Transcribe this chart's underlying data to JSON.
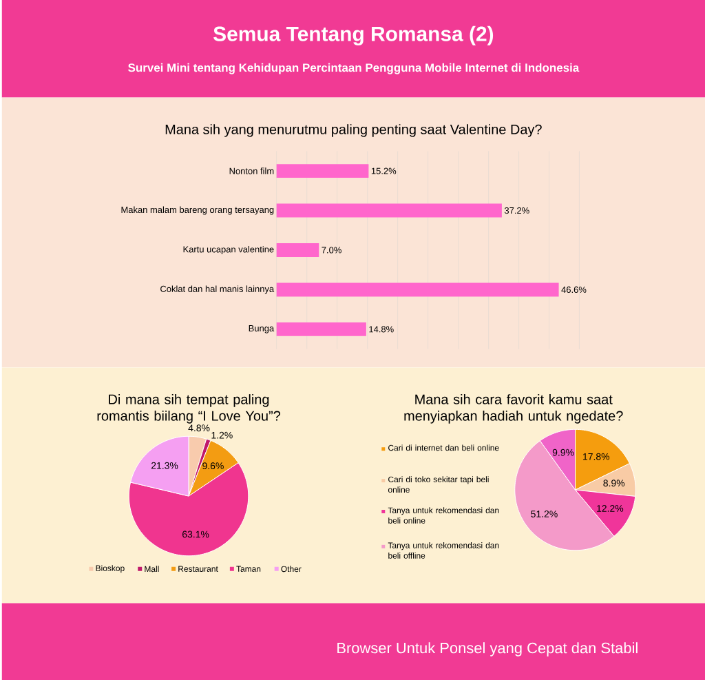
{
  "chart_data": [
    {
      "type": "bar",
      "orientation": "horizontal",
      "title": "Mana sih yang menurutmu paling penting saat Valentine Day?",
      "annotations": [
        "Semua Tentang Romansa (2)",
        "Survei Mini tentang Kehidupan Percintaan Pengguna Mobile Internet di Indonesia"
      ],
      "categories": [
        "Nonton film",
        "Makan malam bareng orang tersayang",
        "Kartu ucapan valentine",
        "Coklat dan hal manis lainnya",
        "Bunga"
      ],
      "values": [
        15.2,
        37.2,
        7.0,
        46.6,
        14.8
      ],
      "value_labels": [
        "15.2%",
        "37.2%",
        "7.0%",
        "46.6%",
        "14.8%"
      ],
      "color": "#ff66cc",
      "xlim": [
        0,
        50
      ],
      "xticks": [
        {
          "value": 0,
          "label": null
        },
        {
          "value": 5,
          "label": null
        },
        {
          "value": 10,
          "label": null
        },
        {
          "value": 15,
          "label": null
        },
        {
          "value": 20,
          "label": null
        },
        {
          "value": 25,
          "label": null
        },
        {
          "value": 30,
          "label": null
        },
        {
          "value": 35,
          "label": null
        },
        {
          "value": 40,
          "label": null
        },
        {
          "value": 45,
          "label": null
        },
        {
          "value": 50,
          "label": null
        }
      ],
      "grid": "x",
      "tick_labels": "y"
    },
    {
      "type": "pie",
      "title": "Di mana sih tempat paling romantis biilang “I Love You”?",
      "categories": [
        "Bioskop",
        "Mall",
        "Restaurant",
        "Taman",
        "Other"
      ],
      "values": [
        4.8,
        1.2,
        9.6,
        63.1,
        21.3
      ],
      "value_labels": [
        "4.8%",
        "1.2%",
        "9.6%",
        "63.1%",
        "21.3%"
      ],
      "colors": [
        "#f8cbad",
        "#c0186b",
        "#f39c12",
        "#f0358f",
        "#f59ff2"
      ],
      "legend": "bottom"
    },
    {
      "type": "pie",
      "title": "Mana sih cara favorit kamu saat menyiapkan hadiah untuk ngedate?",
      "annotations": [
        "Browser Untuk Ponsel yang Cepat dan Stabil"
      ],
      "categories": [
        "Cari di internet dan beli online",
        "Cari di toko sekitar tapi beli online",
        "Tanya untuk rekomendasi dan beli online",
        "Tanya untuk rekomendasi dan beli offline",
        null
      ],
      "values": [
        17.8,
        8.9,
        12.2,
        51.2,
        9.9
      ],
      "value_labels": [
        "17.8%",
        "8.9%",
        "12.2%",
        "51.2%",
        "9.9%"
      ],
      "colors": [
        "#f59d0e",
        "#f8cba5",
        "#f0359a",
        "#f49ac9",
        "#f064c8"
      ],
      "legend": "left"
    }
  ]
}
